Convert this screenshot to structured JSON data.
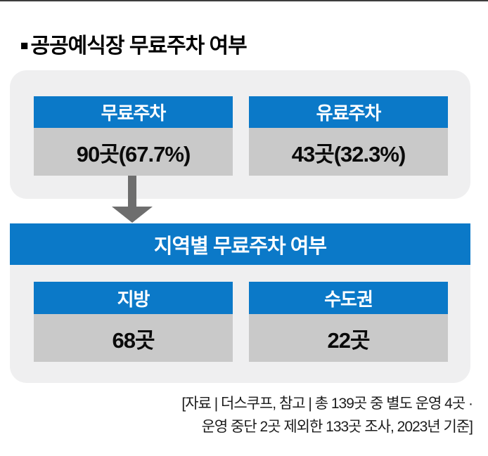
{
  "headline": {
    "bullet": "■",
    "text": "공공예식장 무료주차 여부"
  },
  "card1": {
    "columns": [
      {
        "header": "무료주차",
        "value": "90곳(67.7%)"
      },
      {
        "header": "유료주차",
        "value": "43곳(32.3%)"
      }
    ]
  },
  "card2": {
    "title": "지역별 무료주차 여부",
    "columns": [
      {
        "header": "지방",
        "value": "68곳"
      },
      {
        "header": "수도권",
        "value": "22곳"
      }
    ]
  },
  "caption": {
    "line1": "[자료 | 더스쿠프, 참고 | 총 139곳 중 별도 운영 4곳 ·",
    "line2": "운영 중단 2곳 제외한 133곳 조사, 2023년 기준]"
  },
  "colors": {
    "blue": "#0b79c8",
    "value_gray": "#c9c9c9",
    "card_bg": "#efeff0",
    "arrow_gray": "#6e6e6e",
    "top_rule": "#3c3c3c"
  },
  "chart_data": {
    "type": "table",
    "title": "공공예식장 무료주차 여부",
    "tables": [
      {
        "title": "공공예식장 무료주차 여부",
        "categories": [
          "무료주차",
          "유료주차"
        ],
        "value_labels": [
          "90곳(67.7%)",
          "43곳(32.3%)"
        ],
        "counts": [
          90,
          43
        ],
        "percents": [
          67.7,
          32.3
        ],
        "total_surveyed": 133
      },
      {
        "title": "지역별 무료주차 여부",
        "categories": [
          "지방",
          "수도권"
        ],
        "value_labels": [
          "68곳",
          "22곳"
        ],
        "counts": [
          68,
          22
        ]
      }
    ],
    "source_note": "[자료 | 더스쿠프, 참고 | 총 139곳 중 별도 운영 4곳 · 운영 중단 2곳 제외한 133곳 조사, 2023년 기준]"
  }
}
